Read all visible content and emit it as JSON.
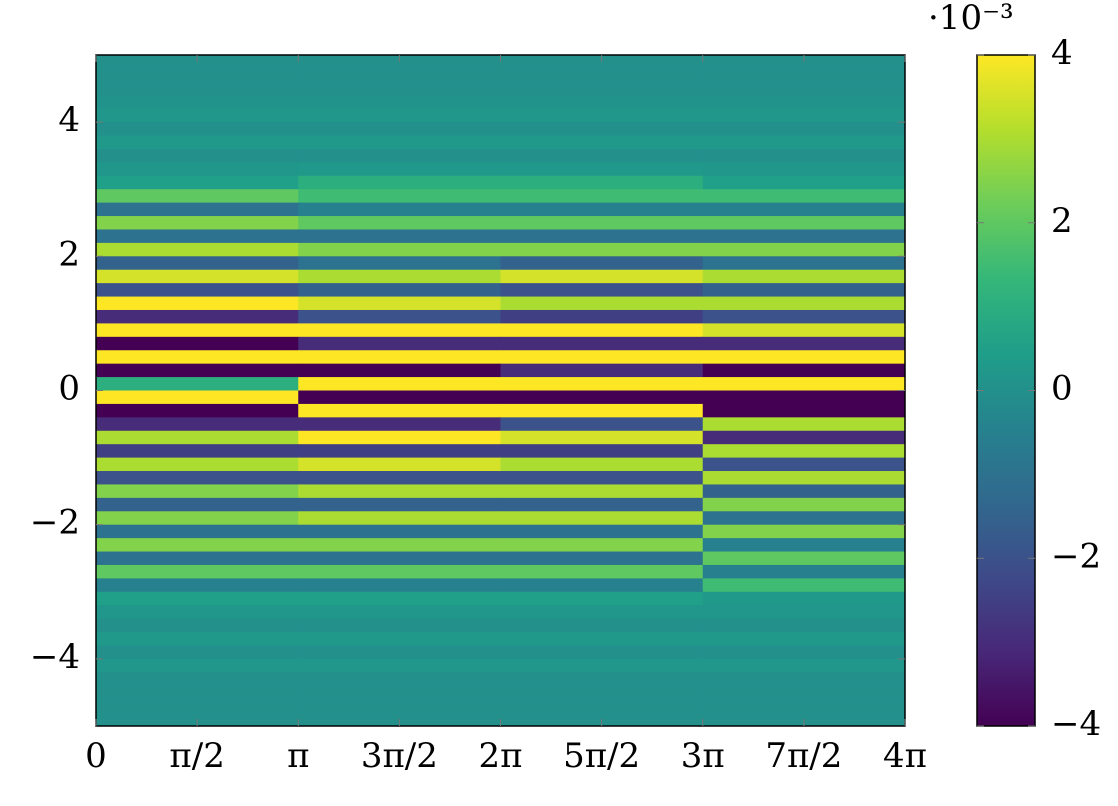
{
  "chart_data": {
    "type": "heatmap",
    "colormap": "viridis",
    "xlim": [
      0,
      12.5664
    ],
    "ylim": [
      -5,
      5
    ],
    "xticks": [
      {
        "value": 0,
        "label": "0"
      },
      {
        "value": 1.5708,
        "label": "π/2"
      },
      {
        "value": 3.1416,
        "label": "π"
      },
      {
        "value": 4.7124,
        "label": "3π/2"
      },
      {
        "value": 6.2832,
        "label": "2π"
      },
      {
        "value": 7.854,
        "label": "5π/2"
      },
      {
        "value": 9.4248,
        "label": "3π"
      },
      {
        "value": 10.9956,
        "label": "7π/2"
      },
      {
        "value": 12.5664,
        "label": "4π"
      }
    ],
    "yticks": [
      {
        "value": -4,
        "label": "−4"
      },
      {
        "value": -2,
        "label": "−2"
      },
      0,
      2,
      4
    ],
    "colorbar": {
      "lim": [
        -4,
        4
      ],
      "ticks": [
        {
          "value": -4,
          "label": "−4"
        },
        {
          "value": -2,
          "label": "−2"
        },
        0,
        2,
        4
      ],
      "multiplier": "·10⁻³"
    },
    "xbins": [
      0,
      3.1416,
      6.2832,
      9.4248,
      12.5664
    ],
    "ybins": [
      5,
      4.8,
      4.6,
      4.4,
      4.2,
      4,
      3.8,
      3.6,
      3.4,
      3.2,
      3,
      2.8,
      2.6,
      2.4,
      2.2,
      2,
      1.8,
      1.6,
      1.4,
      1.2,
      1,
      0.8,
      0.6,
      0.4,
      0.2,
      0,
      -0.2,
      -0.4,
      -0.6,
      -0.8,
      -1,
      -1.2,
      -1.4,
      -1.6,
      -1.8,
      -2,
      -2.2,
      -2.4,
      -2.6,
      -2.8,
      -3,
      -3.2,
      -3.4,
      -3.6,
      -3.8,
      -4,
      -4.2,
      -4.4,
      -4.6,
      -4.8,
      -5
    ],
    "values": [
      [
        0,
        0,
        0,
        0
      ],
      [
        0,
        0,
        0,
        0
      ],
      [
        0,
        0,
        0,
        0
      ],
      [
        0.1,
        0.1,
        0.1,
        0.1
      ],
      [
        0.2,
        0.2,
        0.2,
        0.2
      ],
      [
        0,
        0,
        0,
        0
      ],
      [
        0.3,
        0.3,
        0.3,
        0.3
      ],
      [
        0,
        0,
        0,
        0
      ],
      [
        0.2,
        0.3,
        0.3,
        0.2
      ],
      [
        0.5,
        1,
        1,
        0.5
      ],
      [
        2,
        1.5,
        1.5,
        1.5
      ],
      [
        -1,
        -0.5,
        -0.5,
        -0.5
      ],
      [
        2.5,
        2,
        2,
        2
      ],
      [
        -1,
        -1,
        -1,
        -1
      ],
      [
        3,
        2.5,
        2.5,
        2.5
      ],
      [
        -1.5,
        -1,
        -1.5,
        -1
      ],
      [
        3.5,
        3,
        3.5,
        3
      ],
      [
        -2,
        -1.5,
        -2,
        -1.5
      ],
      [
        4,
        3.5,
        3,
        3
      ],
      [
        -3,
        -2,
        -2.5,
        -2
      ],
      [
        4,
        4,
        4,
        3.5
      ],
      [
        -4,
        -3,
        -3,
        -3
      ],
      [
        4,
        4,
        4,
        4
      ],
      [
        -4,
        -4,
        -3,
        -4
      ],
      [
        1,
        4,
        4,
        4
      ],
      [
        4,
        -4,
        -4,
        -4
      ],
      [
        -4,
        4,
        4,
        -4
      ],
      [
        -3,
        -3,
        -2,
        3
      ],
      [
        3,
        4,
        3.5,
        -3
      ],
      [
        -2.5,
        -2.5,
        -2.5,
        3
      ],
      [
        3,
        3.5,
        3,
        -2
      ],
      [
        -2,
        -2,
        -2,
        3
      ],
      [
        2.5,
        3,
        3,
        -1.5
      ],
      [
        -1.5,
        -1.5,
        -1.5,
        2.5
      ],
      [
        2.5,
        3,
        3,
        -1
      ],
      [
        -1,
        -1,
        -1,
        2.5
      ],
      [
        2.5,
        2.5,
        2.5,
        -0.5
      ],
      [
        -1,
        -1,
        -1,
        2
      ],
      [
        2,
        2,
        2,
        -0.5
      ],
      [
        -0.5,
        -0.5,
        -0.5,
        1.5
      ],
      [
        0.5,
        0.5,
        0.5,
        0.3
      ],
      [
        0.2,
        0.2,
        0.2,
        0.2
      ],
      [
        0,
        0,
        0,
        0
      ],
      [
        0.3,
        0.3,
        0.3,
        0.3
      ],
      [
        0,
        0,
        0,
        0
      ],
      [
        0.2,
        0.2,
        0.2,
        0.2
      ],
      [
        0,
        0,
        0,
        0
      ],
      [
        0,
        0,
        0,
        0
      ],
      [
        0,
        0,
        0,
        0
      ],
      [
        0,
        0,
        0,
        0
      ]
    ]
  }
}
